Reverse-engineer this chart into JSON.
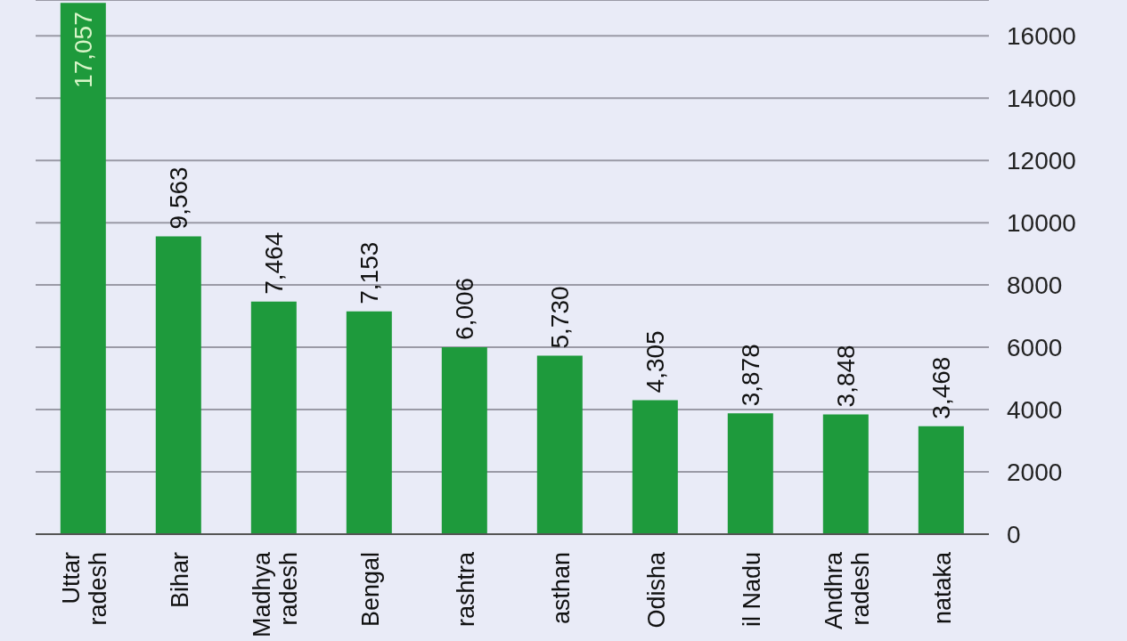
{
  "chart_data": {
    "type": "bar",
    "categories": [
      "Uttar\nradesh",
      "Bihar",
      "Madhya\nradesh",
      "Bengal",
      "rashtra",
      "asthan",
      "Odisha",
      "il Nadu",
      "Andhra\nradesh",
      "nataka"
    ],
    "values": [
      17057,
      9563,
      7464,
      7153,
      6006,
      5730,
      4305,
      3878,
      3848,
      3468
    ],
    "color": "#1e9a3c",
    "ylim": [
      0,
      17150
    ],
    "yticks": [
      0,
      2000,
      4000,
      6000,
      8000,
      10000,
      12000,
      14000,
      16000
    ],
    "value_labels": [
      "17,057",
      "9,563",
      "7,464",
      "7,153",
      "6,006",
      "5,730",
      "4,305",
      "3,878",
      "3,848",
      "3,468"
    ],
    "grid": "y"
  }
}
